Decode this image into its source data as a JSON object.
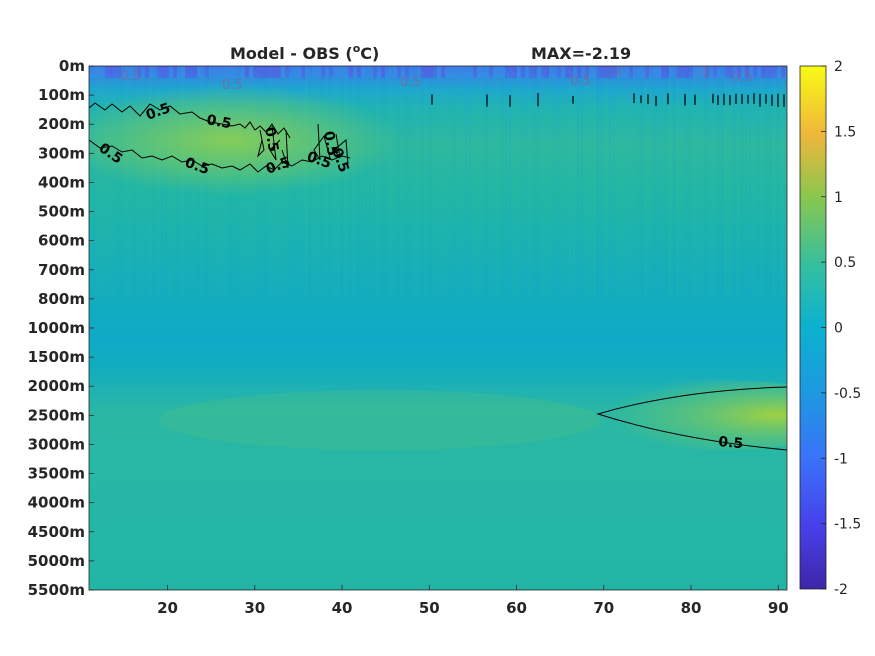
{
  "chart_data": {
    "type": "heatmap",
    "title": "Model - OBS (°C)",
    "title_main": "Model - OBS (",
    "title_sup": "o",
    "title_tail": "C)",
    "max_label": "MAX=-2.19",
    "x_ticks": [
      20,
      30,
      40,
      50,
      60,
      70,
      80,
      90
    ],
    "x_range": [
      11,
      91
    ],
    "y_tick_labels": [
      "0m",
      "100m",
      "200m",
      "300m",
      "400m",
      "500m",
      "600m",
      "700m",
      "800m",
      "1000m",
      "1500m",
      "2000m",
      "2500m",
      "3000m",
      "3500m",
      "4000m",
      "4500m",
      "5000m",
      "5500m"
    ],
    "colorbar": {
      "range": [
        -2,
        2
      ],
      "ticks": [
        "2",
        "1.5",
        "1",
        "0.5",
        "0",
        "-0.5",
        "-1",
        "-1.5",
        "-2"
      ],
      "colormap": "parula"
    },
    "contour_labels": [
      "0.5",
      "0.5",
      "0.5",
      "0.5",
      "0.5",
      "0.5",
      "0.5",
      "0.5",
      "0.5",
      "0.5"
    ],
    "faint_labels": [
      "0.5",
      "0.5",
      "0.5",
      "0.5",
      "0.5",
      "-1",
      "-1"
    ]
  },
  "colors": {
    "bg_main": "#20b4a5",
    "bg_band": "#10a9c7",
    "surface": "#4a7ee8",
    "warm": "#7fcb5a",
    "contour": "#000000"
  }
}
